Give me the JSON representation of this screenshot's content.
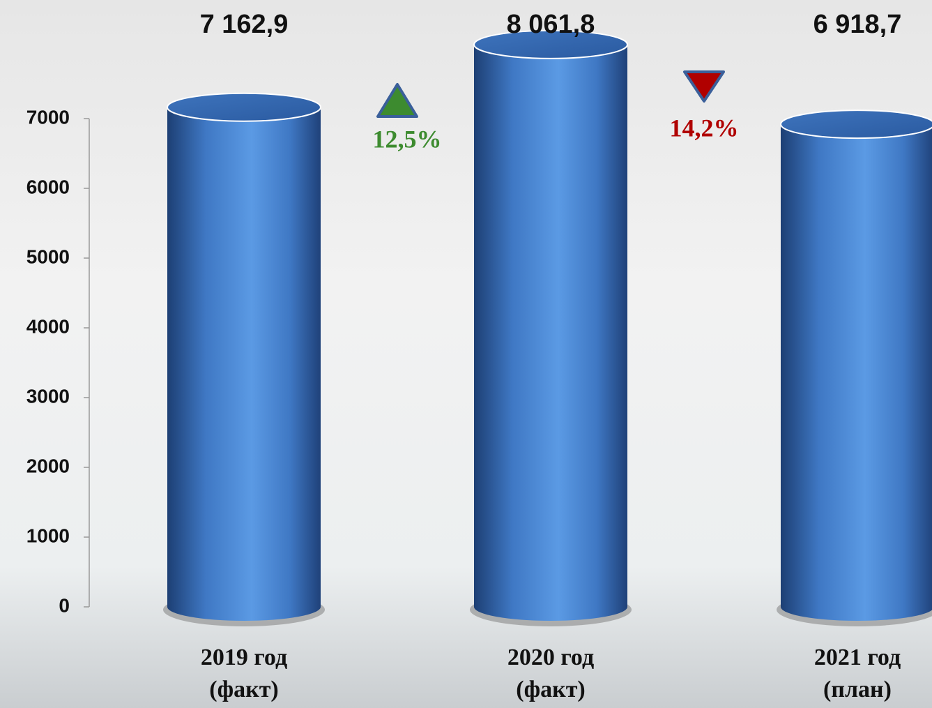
{
  "chart_data": {
    "type": "bar",
    "categories": [
      "2019 год (факт)",
      "2020 год (факт)",
      "2021 год (план)"
    ],
    "values": [
      7162.9,
      8061.8,
      6918.7
    ],
    "value_labels": [
      "7 162,9",
      "8 061,8",
      "6 918,7"
    ],
    "color": "#4f8fd8",
    "ylim": [
      0,
      7000
    ],
    "yticks": [
      0,
      1000,
      2000,
      3000,
      4000,
      5000,
      6000,
      7000
    ],
    "annotations": [
      {
        "text": "12,5%",
        "direction": "up",
        "color": "#3d8b2f"
      },
      {
        "text": "14,2%",
        "direction": "down",
        "color": "#b00000"
      }
    ]
  }
}
